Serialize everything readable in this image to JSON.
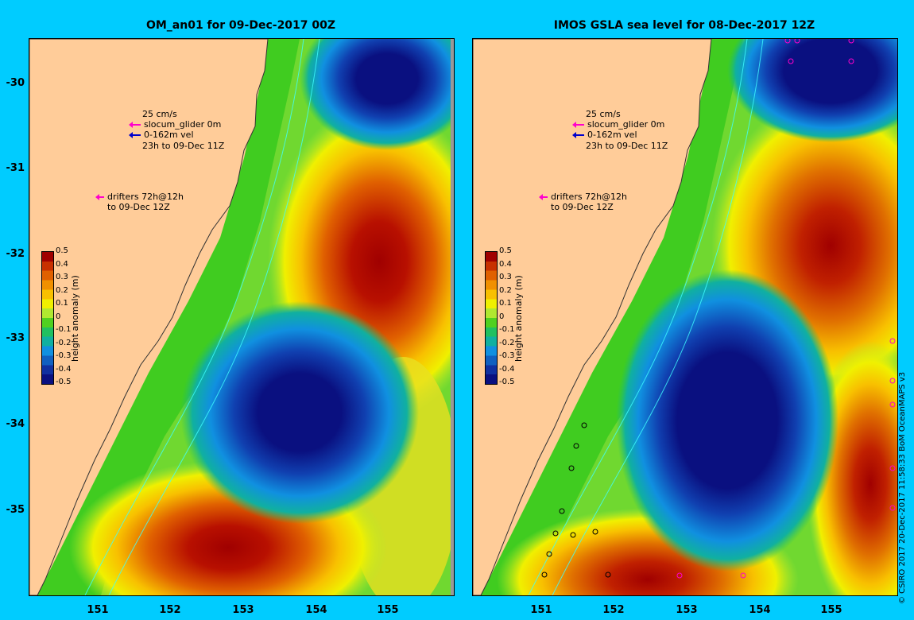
{
  "panels": [
    {
      "title": "OM_an01 for 09-Dec-2017 00Z",
      "legend_speed": "25 cm/s",
      "legend_glider": "slocum_glider 0m",
      "legend_vel": "0-162m vel",
      "legend_time": "23h to 09-Dec 11Z",
      "drifters_1": "drifters 72h@12h",
      "drifters_2": "to 09-Dec 12Z"
    },
    {
      "title": "IMOS GSLA sea level  for 08-Dec-2017 12Z",
      "legend_speed": "25 cm/s",
      "legend_glider": "slocum_glider 0m",
      "legend_vel": "0-162m vel",
      "legend_time": "23h to 09-Dec 11Z",
      "drifters_1": "drifters 72h@12h",
      "drifters_2": "to 09-Dec 12Z"
    }
  ],
  "y_ticks": [
    "-30",
    "-31",
    "-32",
    "-33",
    "-34",
    "-35"
  ],
  "x_ticks": [
    "151",
    "152",
    "153",
    "154",
    "155"
  ],
  "colorbar": {
    "label": "height anomaly (m)",
    "ticks": [
      "0.5",
      "0.4",
      "0.3",
      "0.2",
      "0.1",
      "0",
      "-0.1",
      "-0.2",
      "-0.3",
      "-0.4",
      "-0.5"
    ],
    "colors": [
      "#a00000",
      "#c83000",
      "#e06000",
      "#f09000",
      "#f8c000",
      "#f0f000",
      "#b0e830",
      "#50d020",
      "#20c060",
      "#10b0a0",
      "#1090e0",
      "#1060c0",
      "#1030a0",
      "#0a1080"
    ]
  },
  "credit": "© CSIRO 2017   20-Dec-2017 11:58:33 BoM OceanMAPS v3",
  "colors": {
    "background": "#00ccff",
    "land": "#ffcc99",
    "glider_arrow": "#ff00cc",
    "vel_arrow": "#0000cc"
  }
}
